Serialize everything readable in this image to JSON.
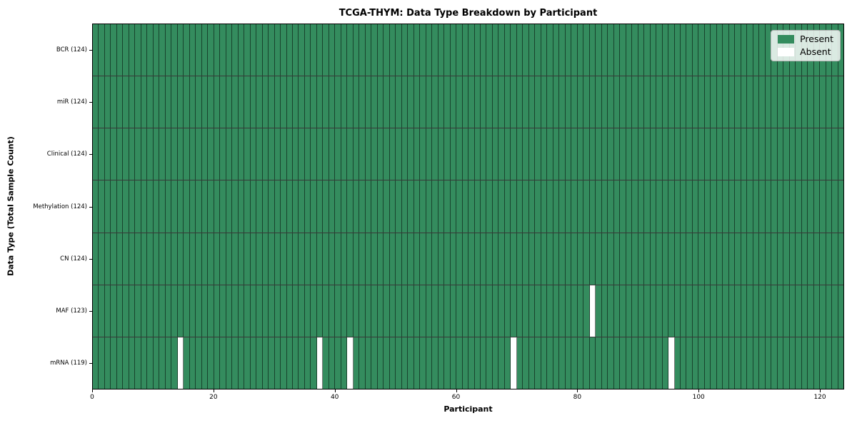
{
  "chart_data": {
    "type": "heatmap",
    "title": "TCGA-THYM: Data Type Breakdown by Participant",
    "xlabel": "Participant",
    "ylabel": "Data Type (Total Sample Count)",
    "n_participants": 124,
    "xlim": [
      0,
      124
    ],
    "x_ticks": [
      0,
      20,
      40,
      60,
      80,
      100,
      120
    ],
    "present_color": "#348c5e",
    "absent_color": "#ffffff",
    "legend": [
      {
        "label": "Present",
        "color": "#348c5e"
      },
      {
        "label": "Absent",
        "color": "#ffffff"
      }
    ],
    "legend_position": "upper right",
    "grid": "cell-borders",
    "rows": [
      {
        "data_type": "BCR",
        "label": "BCR (124)",
        "present_count": 124,
        "missing_participants": []
      },
      {
        "data_type": "miR",
        "label": "miR (124)",
        "present_count": 124,
        "missing_participants": []
      },
      {
        "data_type": "Clinical",
        "label": "Clinical (124)",
        "present_count": 124,
        "missing_participants": []
      },
      {
        "data_type": "Methylation",
        "label": "Methylation (124)",
        "present_count": 124,
        "missing_participants": []
      },
      {
        "data_type": "CN",
        "label": "CN (124)",
        "present_count": 124,
        "missing_participants": []
      },
      {
        "data_type": "MAF",
        "label": "MAF (123)",
        "present_count": 123,
        "missing_participants": [
          82
        ]
      },
      {
        "data_type": "mRNA",
        "label": "mRNA (119)",
        "present_count": 119,
        "missing_participants": [
          14,
          37,
          42,
          69,
          95
        ]
      }
    ]
  }
}
